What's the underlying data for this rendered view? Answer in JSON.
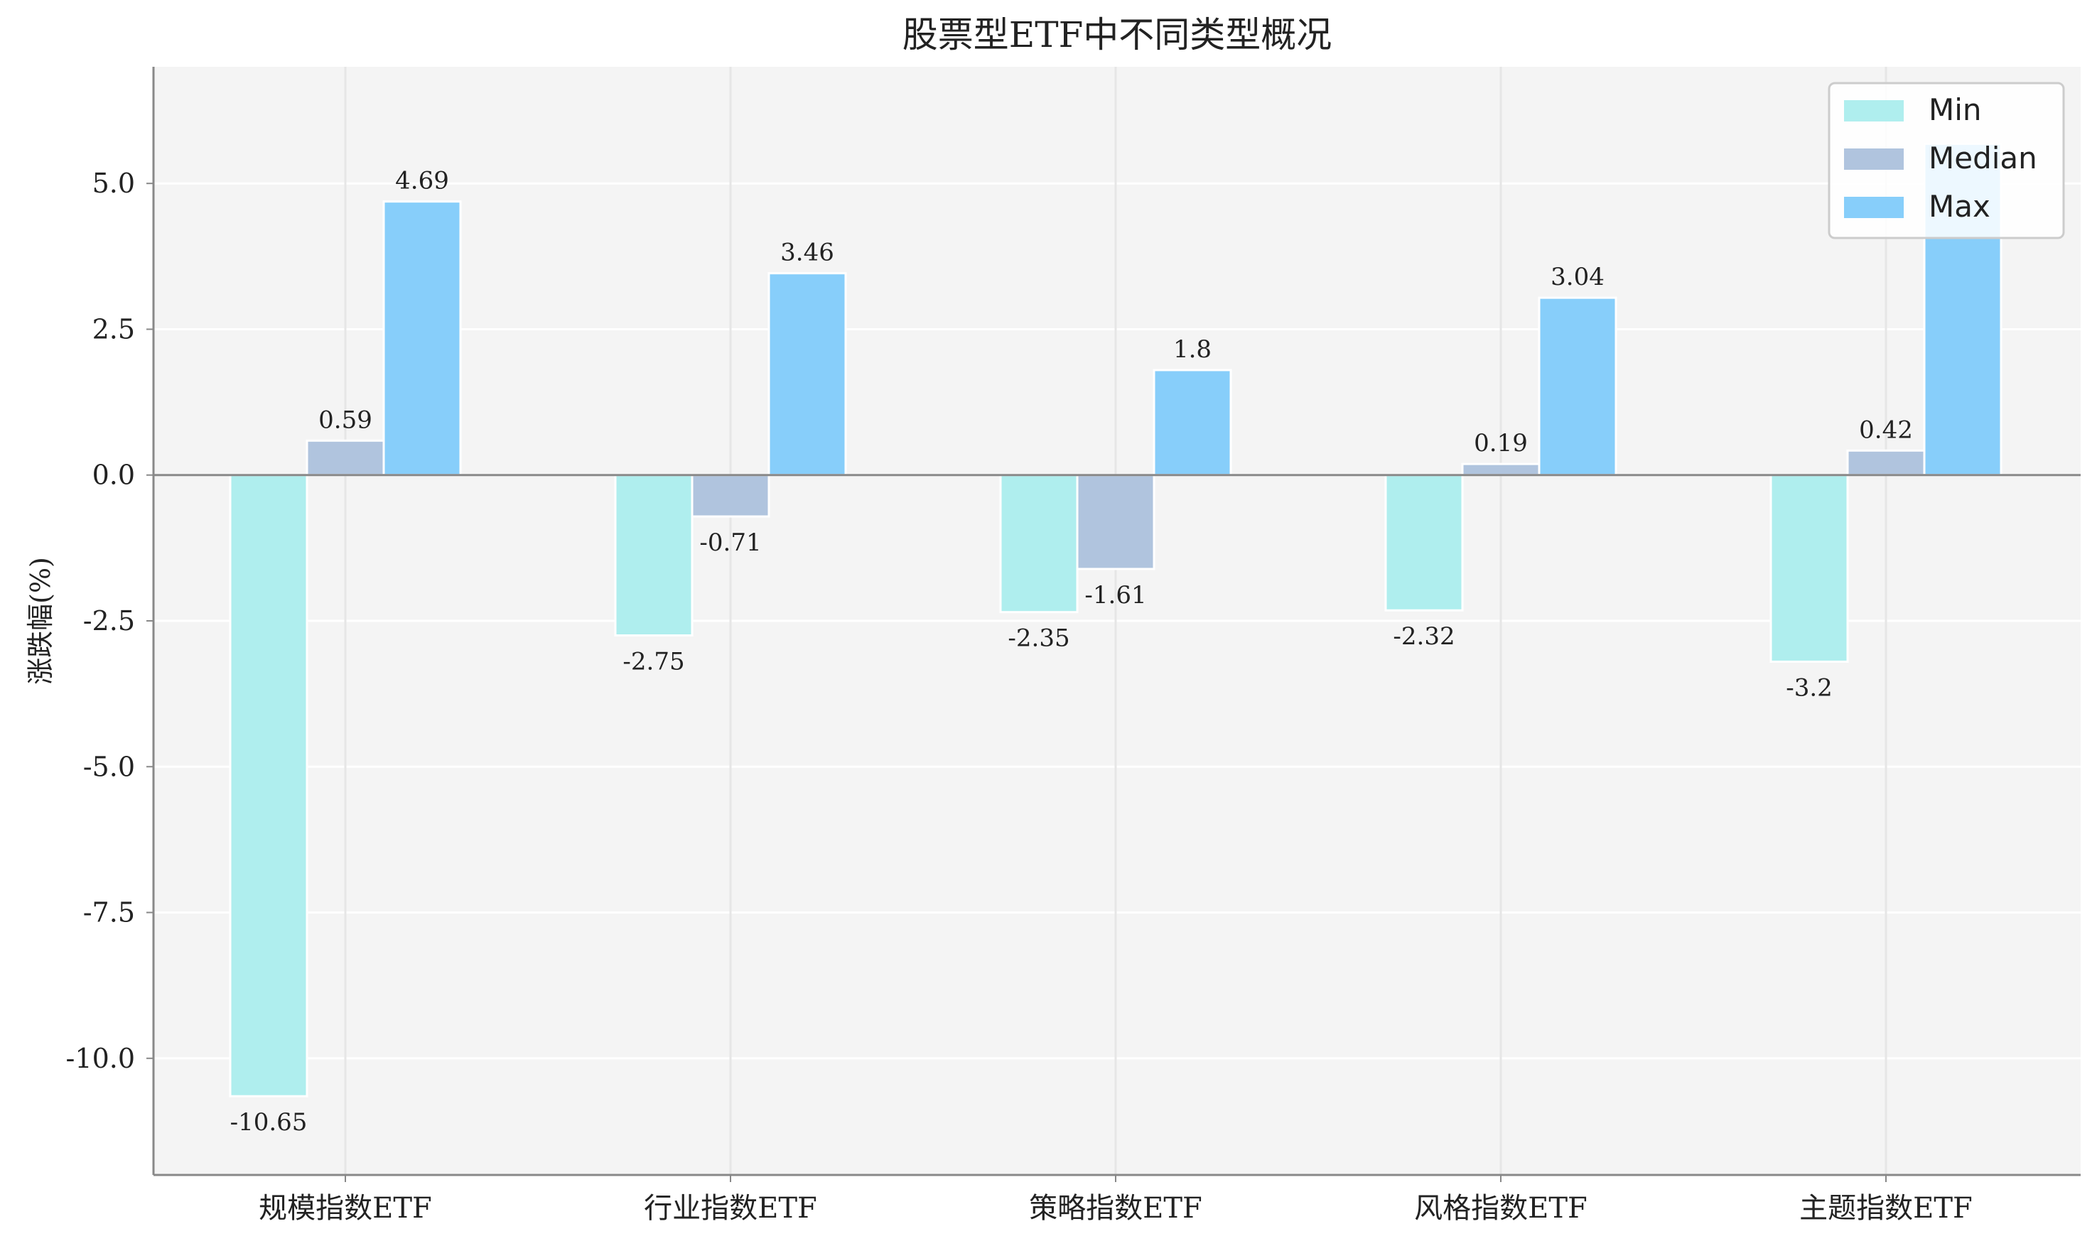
{
  "chart_data": {
    "type": "bar",
    "title": "股票型ETF中不同类型概况",
    "xlabel": "",
    "ylabel": "涨跌幅(%)",
    "categories": [
      "规模指数ETF",
      "行业指数ETF",
      "策略指数ETF",
      "风格指数ETF",
      "主题指数ETF"
    ],
    "series": [
      {
        "name": "Min",
        "values": [
          -10.65,
          -2.75,
          -2.35,
          -2.32,
          -3.2
        ],
        "color": "#afeeee"
      },
      {
        "name": "Median",
        "values": [
          0.59,
          -0.71,
          -1.61,
          0.19,
          0.42
        ],
        "color": "#b0c4de"
      },
      {
        "name": "Max",
        "values": [
          4.69,
          3.46,
          1.8,
          3.04,
          5.68
        ],
        "color": "#87cefa"
      }
    ],
    "data_labels": [
      [
        "-10.65",
        "-2.75",
        "-2.35",
        "-2.32",
        "-3.2"
      ],
      [
        "0.59",
        "-0.71",
        "-1.61",
        "0.19",
        "0.42"
      ],
      [
        "4.69",
        "3.46",
        "1.8",
        "3.04",
        ""
      ]
    ],
    "yticks": [
      5.0,
      2.5,
      0.0,
      -2.5,
      -5.0,
      -7.5,
      -10.0
    ],
    "ytick_labels": [
      "5.0",
      "2.5",
      "0.0",
      "-2.5",
      "-5.0",
      "-7.5",
      "-10.0"
    ],
    "ylim": [
      -12.0,
      7.0
    ],
    "grid": true,
    "legend_position": "top-right",
    "colors": {
      "plot_bg": "#f4f4f4",
      "grid": "#ffffff",
      "zero_line": "#888888",
      "axis": "#888888"
    }
  }
}
